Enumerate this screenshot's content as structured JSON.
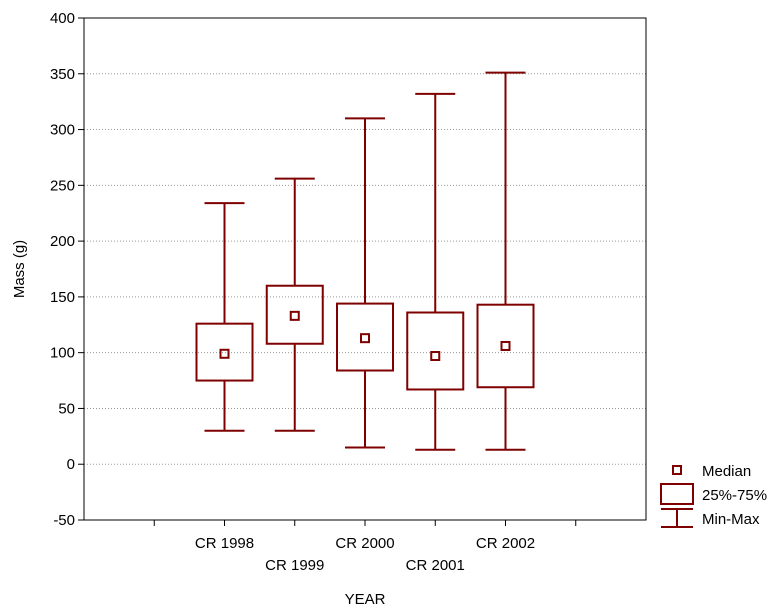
{
  "chart_data": {
    "type": "boxplot",
    "xlabel": "YEAR",
    "ylabel": "Mass (g)",
    "ylim": [
      -50,
      400
    ],
    "yticks": [
      -50,
      0,
      50,
      100,
      150,
      200,
      250,
      300,
      350,
      400
    ],
    "grid": "horizontal dotted",
    "categories": [
      "CR 1998",
      "CR 1999",
      "CR 2000",
      "CR 2001",
      "CR 2002"
    ],
    "min": [
      30,
      30,
      15,
      13,
      13
    ],
    "q1": [
      75,
      108,
      84,
      67,
      69
    ],
    "median": [
      99,
      133,
      113,
      97,
      106
    ],
    "q3": [
      126,
      160,
      144,
      136,
      143
    ],
    "max": [
      234,
      256,
      310,
      332,
      351
    ],
    "color": "#7f0000",
    "legend": {
      "position": "bottom-right",
      "entries": [
        {
          "symbol": "median-square",
          "label": "Median"
        },
        {
          "symbol": "box",
          "label": "25%-75%"
        },
        {
          "symbol": "whisker",
          "label": "Min-Max"
        }
      ]
    }
  }
}
